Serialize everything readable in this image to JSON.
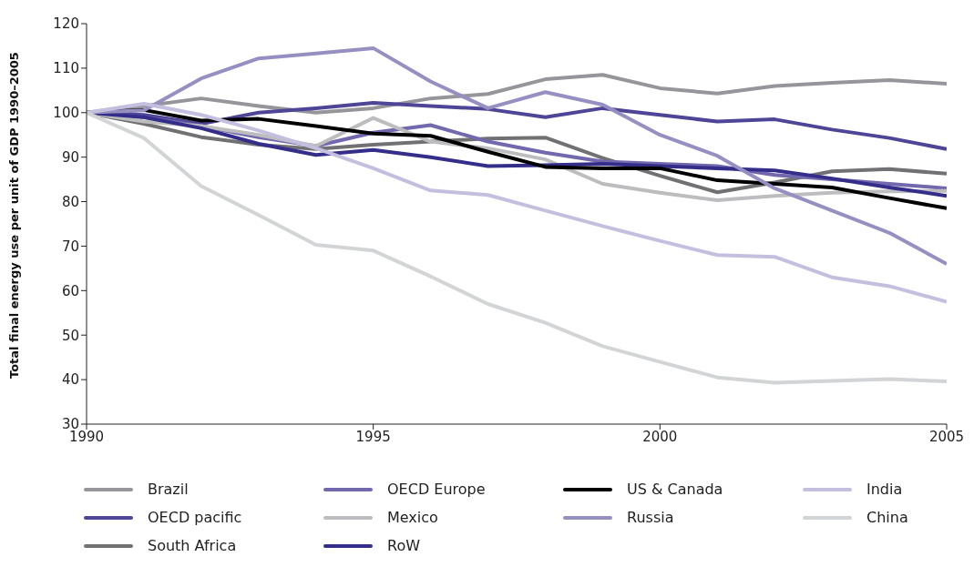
{
  "chart_data": {
    "type": "line",
    "ylabel": "Total final energy use per unit of GDP 1990–2005",
    "x": [
      1990,
      1991,
      1992,
      1993,
      1994,
      1995,
      1996,
      1997,
      1998,
      1999,
      2000,
      2001,
      2002,
      2003,
      2004,
      2005
    ],
    "xlim": [
      1990,
      2005
    ],
    "xticks": [
      1990,
      1995,
      2000,
      2005
    ],
    "ylim": [
      30,
      120
    ],
    "yticks": [
      30,
      40,
      50,
      60,
      70,
      80,
      90,
      100,
      110,
      120
    ],
    "grid": false,
    "legend": "bottom",
    "marker": "none",
    "line_style": "solid",
    "series": [
      {
        "name": "Brazil",
        "color": "#96969a",
        "values": [
          100,
          101.5,
          103.2,
          101.5,
          100,
          101,
          103.2,
          104.2,
          107.5,
          108.5,
          105.5,
          104.3,
          106,
          106.7,
          107.3,
          106.5
        ]
      },
      {
        "name": "OECD pacific",
        "color": "#4e4596",
        "values": [
          100,
          99.5,
          97.5,
          100,
          101,
          102.2,
          101.5,
          100.8,
          99,
          101,
          99.5,
          98,
          98.5,
          96.2,
          94.3,
          91.8
        ]
      },
      {
        "name": "South Africa",
        "color": "#717173",
        "values": [
          100,
          97.5,
          94.5,
          92.8,
          91.8,
          92.8,
          93.5,
          94.2,
          94.4,
          89.8,
          85.8,
          82.1,
          84.3,
          86.8,
          87.3,
          86.3
        ]
      },
      {
        "name": "OECD Europe",
        "color": "#7268ad",
        "values": [
          100,
          99,
          97,
          94.5,
          92.5,
          95.5,
          97.2,
          93.5,
          91,
          89,
          88.5,
          88,
          86,
          85,
          84,
          83
        ]
      },
      {
        "name": "Mexico",
        "color": "#bdbdbf",
        "values": [
          100,
          98,
          97,
          95,
          92.5,
          98.8,
          93.5,
          92,
          89.5,
          84,
          82,
          80.3,
          81.3,
          82,
          82.3,
          82.4
        ]
      },
      {
        "name": "RoW",
        "color": "#352d8a",
        "values": [
          100,
          99,
          96.5,
          93,
          90.5,
          91.6,
          90,
          88,
          88.2,
          88.5,
          88,
          87.5,
          87,
          85.2,
          83.2,
          81.3
        ]
      },
      {
        "name": "US & Canada",
        "color": "#000000",
        "values": [
          100,
          100.6,
          98.2,
          98.6,
          97,
          95.3,
          94.8,
          91.2,
          87.8,
          87.5,
          87.5,
          84.8,
          84,
          83.2,
          80.8,
          78.5
        ]
      },
      {
        "name": "Russia",
        "color": "#968fc2",
        "values": [
          100,
          100.5,
          107.7,
          112.2,
          113.3,
          114.5,
          107,
          101,
          104.6,
          101.8,
          95,
          90.3,
          83,
          78,
          73,
          66
        ]
      },
      {
        "name": "India",
        "color": "#c4bfdf",
        "values": [
          100,
          102,
          99.5,
          96,
          92,
          87.5,
          82.5,
          81.5,
          78,
          74.5,
          71.2,
          68,
          67.6,
          63,
          61,
          57.5
        ]
      },
      {
        "name": "China",
        "color": "#d3d4d5",
        "values": [
          100,
          94.3,
          83.5,
          77,
          70.3,
          69,
          63.2,
          57,
          52.8,
          47.5,
          44,
          40.5,
          39.3,
          39.7,
          40.1,
          39.6
        ]
      }
    ]
  }
}
